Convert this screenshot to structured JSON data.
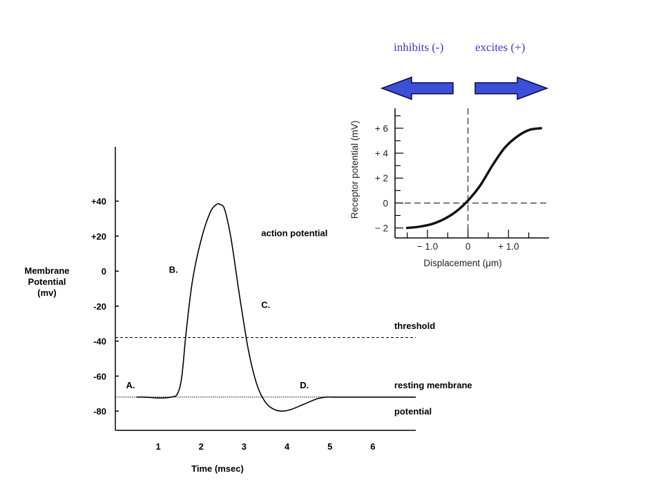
{
  "header": {
    "inhibits_label": "inhibits (-)",
    "excites_label": "excites (+)",
    "label_color": "#3a3ad0",
    "arrow_color": "#3b4fd8",
    "arrow_outline": "#0a0a3a"
  },
  "chart_data": [
    {
      "type": "line",
      "title": "",
      "xlabel": "Time (msec)",
      "ylabel_lines": [
        "Membrane",
        "Potential",
        "(mv)"
      ],
      "xlim": [
        0,
        7
      ],
      "ylim": [
        -91,
        71
      ],
      "x_ticks": [
        1,
        2,
        3,
        4,
        5,
        6
      ],
      "y_ticks": [
        40,
        20,
        0,
        -20,
        -40,
        -60,
        -80
      ],
      "y_tick_labels": [
        "+40",
        "+20",
        "0",
        "-20",
        "-40",
        "-60",
        "-80"
      ],
      "grid": false,
      "legend": "none",
      "threshold": -38,
      "resting": -72,
      "series": [
        {
          "name": "",
          "x": [
            0.5,
            0.7,
            1.0,
            1.3,
            1.45,
            1.55,
            1.65,
            1.8,
            2.0,
            2.2,
            2.35,
            2.45,
            2.55,
            2.7,
            2.9,
            3.1,
            3.3,
            3.5,
            3.7,
            3.9,
            4.1,
            4.4,
            4.7,
            4.9,
            5.1,
            5.5,
            6.0,
            6.5,
            7.0
          ],
          "y": [
            -72,
            -72,
            -72.5,
            -72,
            -70,
            -60,
            -35,
            -5,
            18,
            33,
            38,
            38,
            35,
            18,
            -15,
            -45,
            -65,
            -75,
            -79,
            -80,
            -79,
            -76,
            -73,
            -72,
            -72,
            -72,
            -72,
            -72,
            -72
          ]
        }
      ],
      "annotations": [
        {
          "text": "action potential",
          "x": 3.4,
          "y": 20
        },
        {
          "text": "B.",
          "x": 1.25,
          "y": -1
        },
        {
          "text": "C.",
          "x": 3.4,
          "y": -21
        },
        {
          "text": "threshold",
          "x": 6.5,
          "y": -33
        },
        {
          "text": "A.",
          "x": 0.25,
          "y": -67
        },
        {
          "text": "D.",
          "x": 4.3,
          "y": -67
        },
        {
          "text": "resting membrane",
          "x": 6.5,
          "y": -67
        },
        {
          "text": "potential",
          "x": 6.5,
          "y": -82
        }
      ]
    },
    {
      "type": "line",
      "title": "",
      "xlabel": "Displacement (μm)",
      "ylabel": "Receptor potential (mV)",
      "xlim": [
        -1.8,
        2.0
      ],
      "ylim": [
        -2.8,
        7.6
      ],
      "x_ticks": [
        -1.0,
        0,
        1.0
      ],
      "x_tick_labels": [
        "− 1.0",
        "0",
        "+ 1.0"
      ],
      "y_ticks": [
        6,
        4,
        2,
        0,
        -2
      ],
      "y_tick_labels": [
        "+ 6",
        "+ 4",
        "+ 2",
        "0",
        "− 2"
      ],
      "grid": false,
      "legend": "none",
      "reference_lines": {
        "x": 0,
        "y": 0
      },
      "series": [
        {
          "name": "",
          "x": [
            -1.5,
            -1.2,
            -0.9,
            -0.6,
            -0.3,
            0,
            0.3,
            0.6,
            0.9,
            1.2,
            1.5,
            1.8
          ],
          "y": [
            -2.0,
            -1.9,
            -1.7,
            -1.3,
            -0.7,
            0.2,
            1.4,
            3.0,
            4.4,
            5.3,
            5.85,
            6.0
          ]
        }
      ]
    }
  ]
}
